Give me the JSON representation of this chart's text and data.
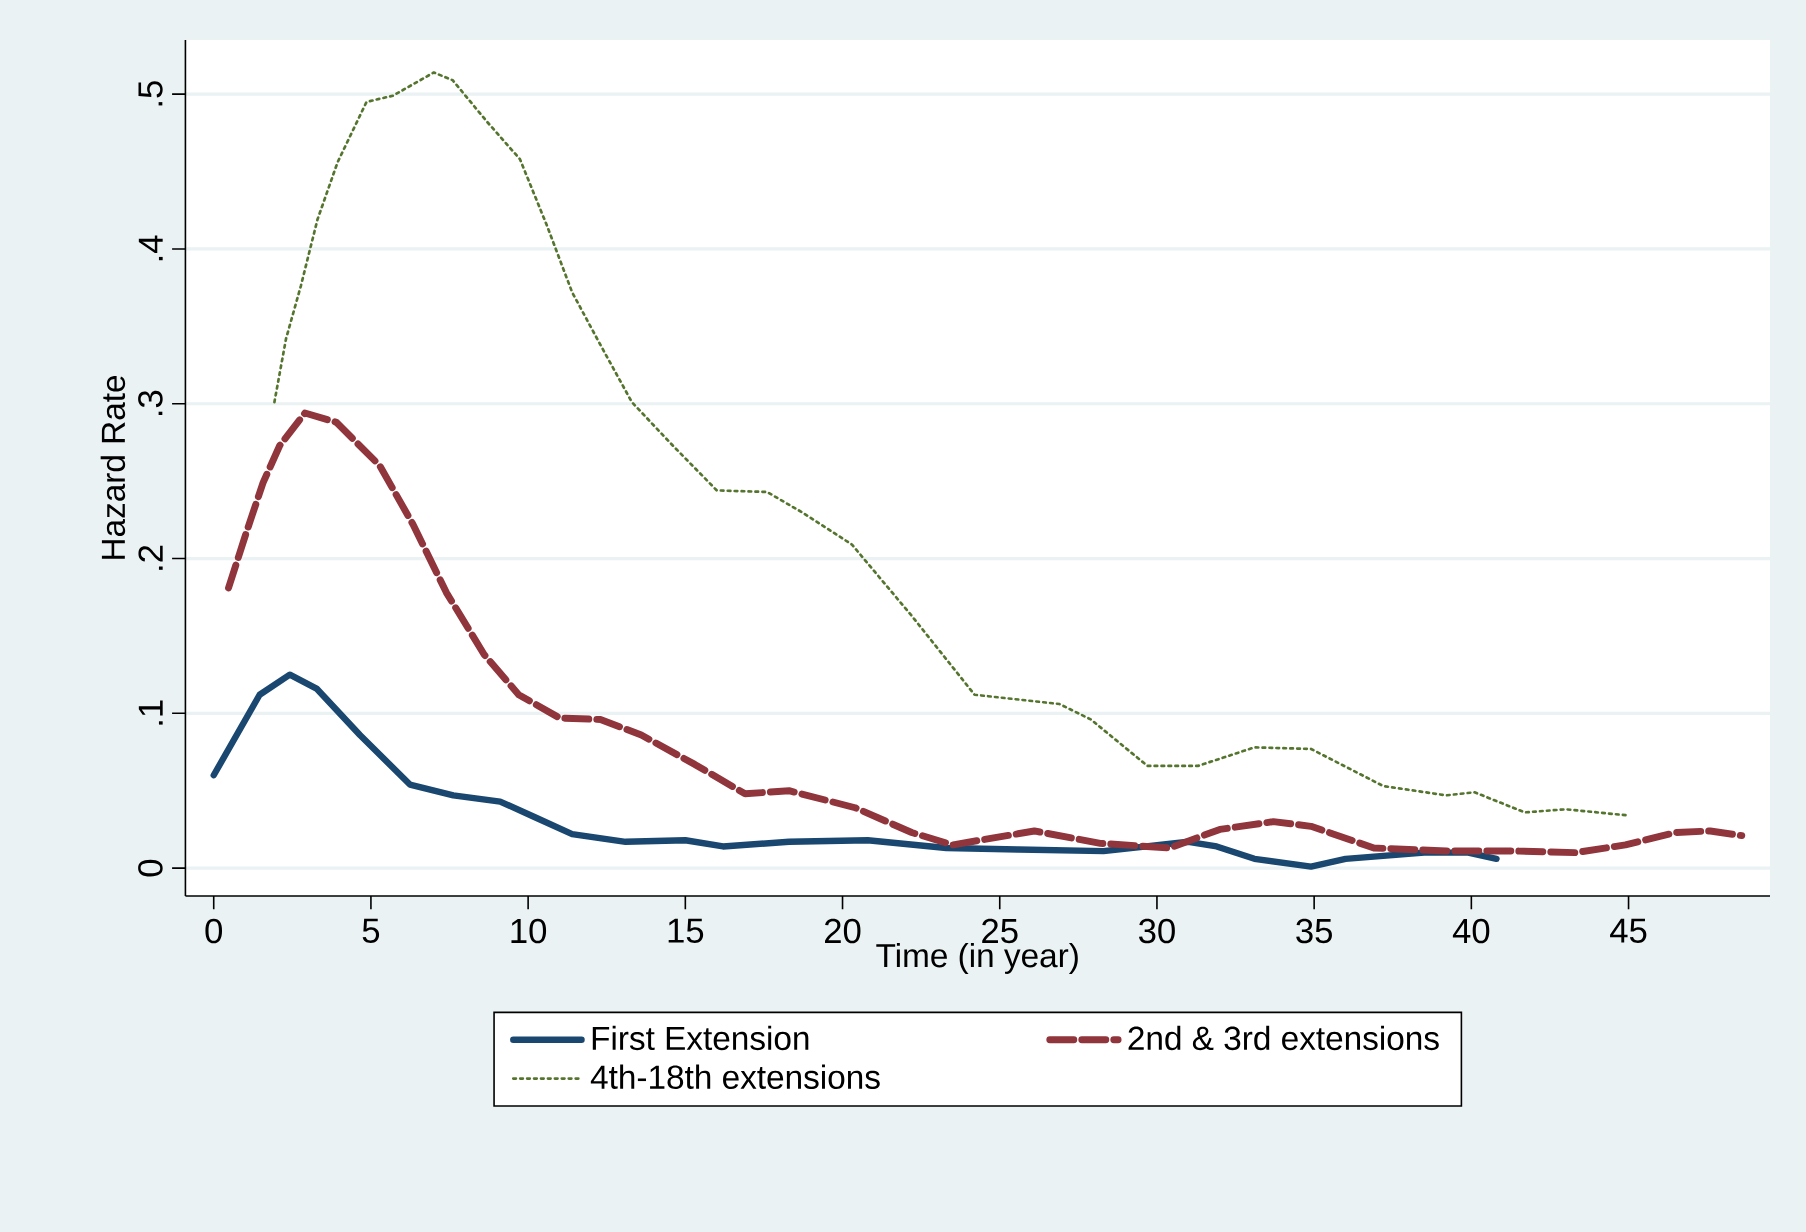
{
  "chart_data": {
    "type": "line",
    "xlabel": "Time (in year)",
    "ylabel": "Hazard Rate",
    "xlim": [
      -0.9,
      49.5
    ],
    "ylim": [
      -0.018,
      0.535
    ],
    "xticks": [
      0,
      5,
      10,
      15,
      20,
      25,
      30,
      35,
      40,
      45
    ],
    "yticks": [
      {
        "value": 0,
        "label": "0"
      },
      {
        "value": 0.1,
        "label": ".1"
      },
      {
        "value": 0.2,
        "label": ".2"
      },
      {
        "value": 0.3,
        "label": ".3"
      },
      {
        "value": 0.4,
        "label": ".4"
      },
      {
        "value": 0.5,
        "label": ".5"
      }
    ],
    "grid": "y",
    "legend": "bottom",
    "marker": "none",
    "series": [
      {
        "name": "First Extension",
        "color": "#1a476f",
        "line_style": "solid",
        "x": [
          0,
          1.46,
          2.42,
          3.27,
          4.65,
          6.24,
          7.62,
          9.11,
          10.2,
          11.4,
          13.1,
          15.0,
          16.2,
          18.3,
          20.8,
          23.3,
          25.6,
          28.3,
          31.0,
          31.9,
          33.1,
          34.9,
          36.0,
          38.5,
          39.9,
          40.8
        ],
        "values": [
          0.06,
          0.112,
          0.125,
          0.116,
          0.086,
          0.054,
          0.047,
          0.043,
          0.033,
          0.022,
          0.017,
          0.018,
          0.014,
          0.017,
          0.018,
          0.013,
          0.012,
          0.011,
          0.017,
          0.014,
          0.006,
          0.001,
          0.006,
          0.01,
          0.01,
          0.006
        ]
      },
      {
        "name": "2nd & 3rd extensions",
        "color": "#90353b",
        "line_style": "dashed",
        "x": [
          0.47,
          1.04,
          1.57,
          2.1,
          2.9,
          3.9,
          5.28,
          6.34,
          7.4,
          8.6,
          9.7,
          11.0,
          12.3,
          13.6,
          15.3,
          16.9,
          18.3,
          20.4,
          22.2,
          23.5,
          26.1,
          28.2,
          30.4,
          32.0,
          33.7,
          34.9,
          36.9,
          39.2,
          41.5,
          43.3,
          44.9,
          46.5,
          47.6,
          48.6
        ],
        "values": [
          0.181,
          0.217,
          0.249,
          0.273,
          0.294,
          0.288,
          0.26,
          0.222,
          0.178,
          0.138,
          0.112,
          0.097,
          0.096,
          0.086,
          0.067,
          0.048,
          0.05,
          0.039,
          0.023,
          0.015,
          0.024,
          0.016,
          0.013,
          0.025,
          0.03,
          0.027,
          0.013,
          0.011,
          0.011,
          0.01,
          0.015,
          0.023,
          0.024,
          0.021
        ]
      },
      {
        "name": "4th-18th extensions",
        "color": "#55752f",
        "line_style": "dotted",
        "x": [
          1.93,
          2.3,
          2.77,
          3.3,
          3.94,
          4.86,
          5.7,
          7.0,
          7.6,
          8.7,
          9.74,
          10.6,
          11.4,
          12.3,
          13.3,
          14.6,
          16.0,
          17.6,
          18.7,
          20.3,
          22.2,
          24.2,
          26.9,
          27.9,
          29.7,
          31.3,
          33.1,
          34.9,
          37.2,
          39.2,
          40.1,
          41.7,
          43.0,
          45.0
        ],
        "values": [
          0.301,
          0.342,
          0.376,
          0.419,
          0.456,
          0.495,
          0.499,
          0.514,
          0.509,
          0.482,
          0.458,
          0.415,
          0.372,
          0.338,
          0.301,
          0.273,
          0.244,
          0.243,
          0.23,
          0.209,
          0.163,
          0.112,
          0.106,
          0.096,
          0.066,
          0.066,
          0.078,
          0.077,
          0.053,
          0.047,
          0.049,
          0.036,
          0.038,
          0.034
        ]
      }
    ]
  }
}
